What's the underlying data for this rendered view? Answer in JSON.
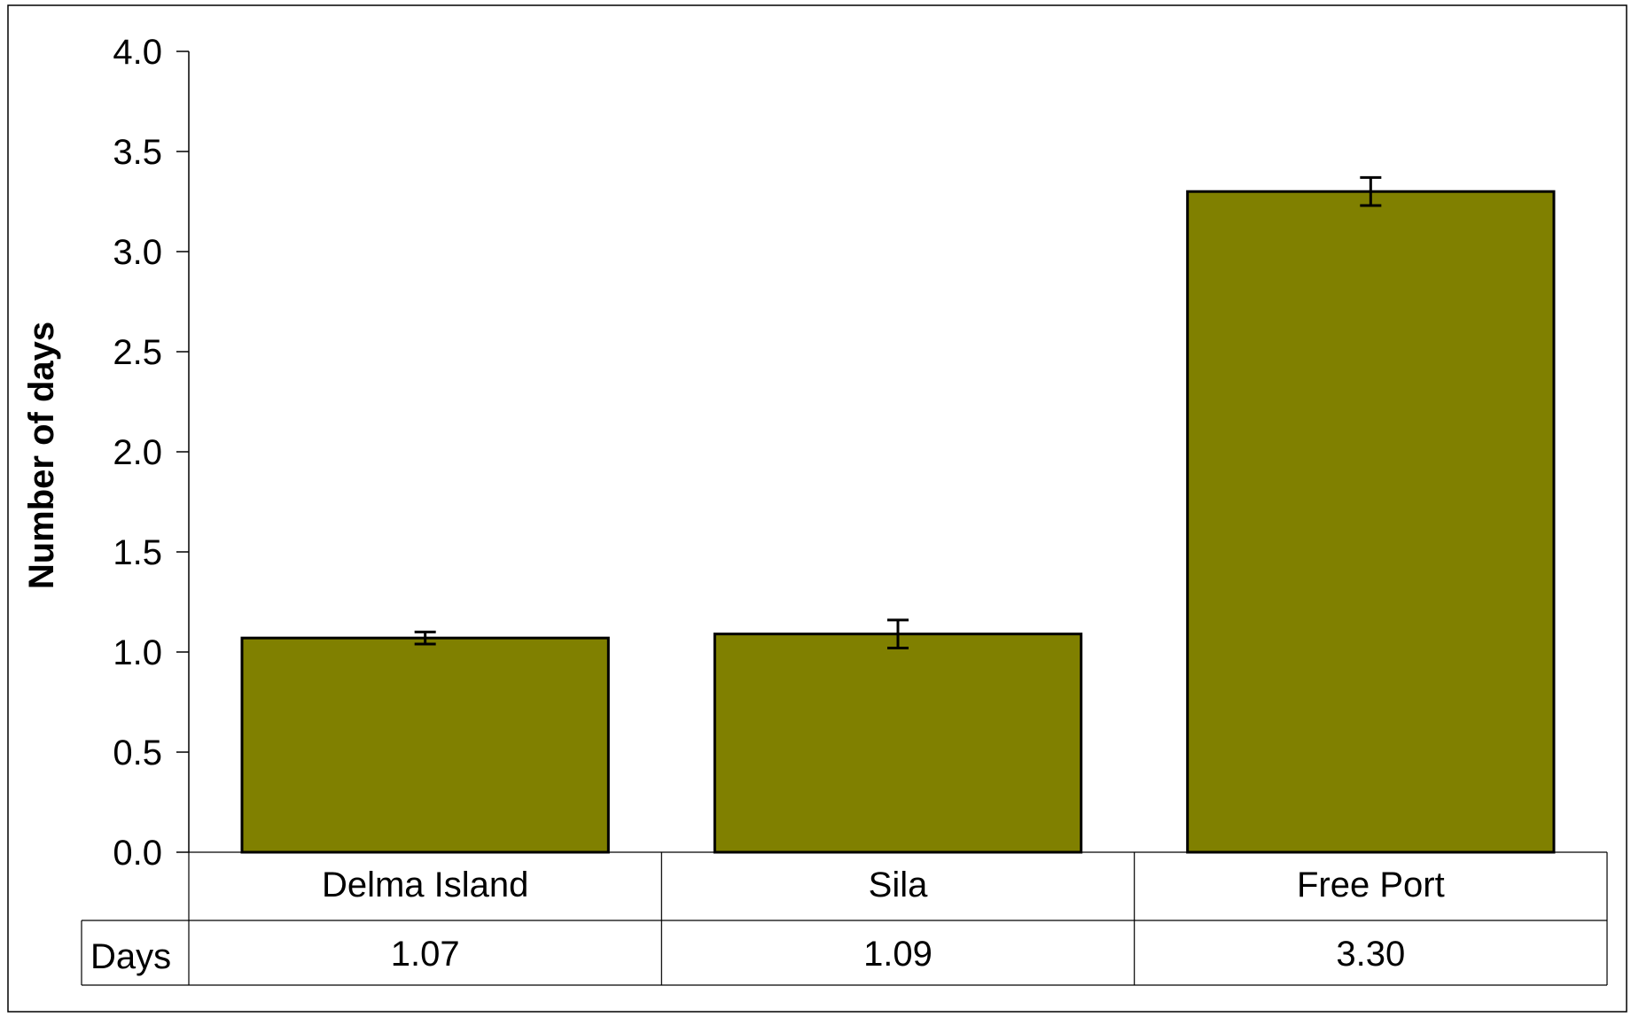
{
  "chart_data": {
    "type": "bar",
    "title": "",
    "ylabel": "Number of days",
    "xlabel": "",
    "ylim": [
      0,
      4.0
    ],
    "yticks": [
      "0.0",
      "0.5",
      "1.0",
      "1.5",
      "2.0",
      "2.5",
      "3.0",
      "3.5",
      "4.0"
    ],
    "categories": [
      "Delma Island",
      "Sila",
      "Free Port"
    ],
    "series": [
      {
        "name": "Days",
        "values": [
          1.07,
          1.09,
          3.3
        ],
        "value_labels": [
          "1.07",
          "1.09",
          "3.30"
        ],
        "error": [
          0.03,
          0.07,
          0.07
        ],
        "color": "#808000"
      }
    ],
    "grid": false,
    "legend": "none",
    "data_table": true
  }
}
